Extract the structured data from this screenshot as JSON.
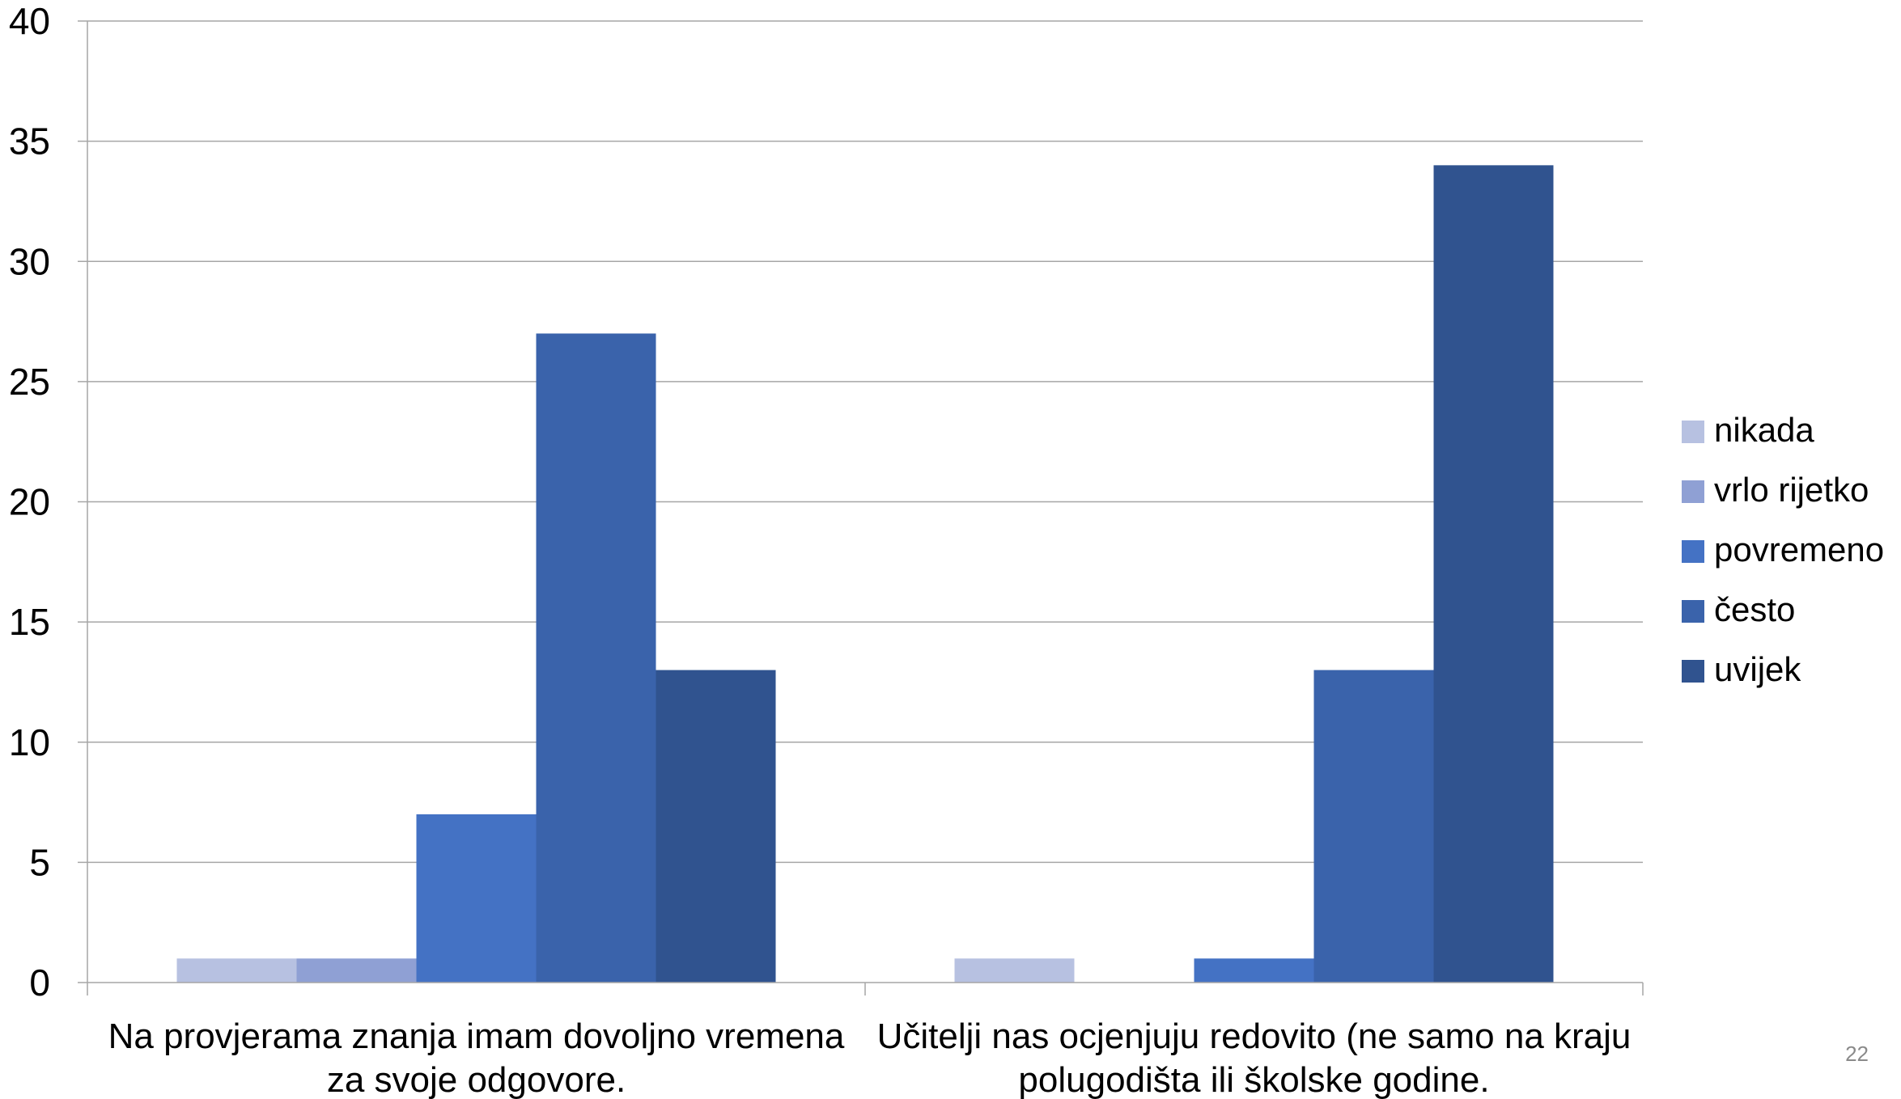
{
  "chart_data": {
    "type": "bar",
    "categories": [
      [
        "Na provjerama znanja imam dovoljno vremena",
        "za svoje odgovore."
      ],
      [
        "Učitelji nas ocjenjuju redovito (ne samo na kraju",
        "polugodišta ili školske godine."
      ]
    ],
    "series": [
      {
        "name": "nikada",
        "color": "#b7c1e1",
        "values": [
          1,
          1
        ]
      },
      {
        "name": "vrlo rijetko",
        "color": "#8fa0d4",
        "values": [
          1,
          0
        ]
      },
      {
        "name": "povremeno",
        "color": "#4472c4",
        "values": [
          7,
          1
        ]
      },
      {
        "name": "često",
        "color": "#3a63ab",
        "values": [
          27,
          13
        ]
      },
      {
        "name": "uvijek",
        "color": "#30538f",
        "values": [
          13,
          34
        ]
      }
    ],
    "ylim": [
      0,
      40
    ],
    "yticks": [
      0,
      5,
      10,
      15,
      20,
      25,
      30,
      35,
      40
    ],
    "grid": true,
    "legend": "right"
  },
  "page_number": "22"
}
